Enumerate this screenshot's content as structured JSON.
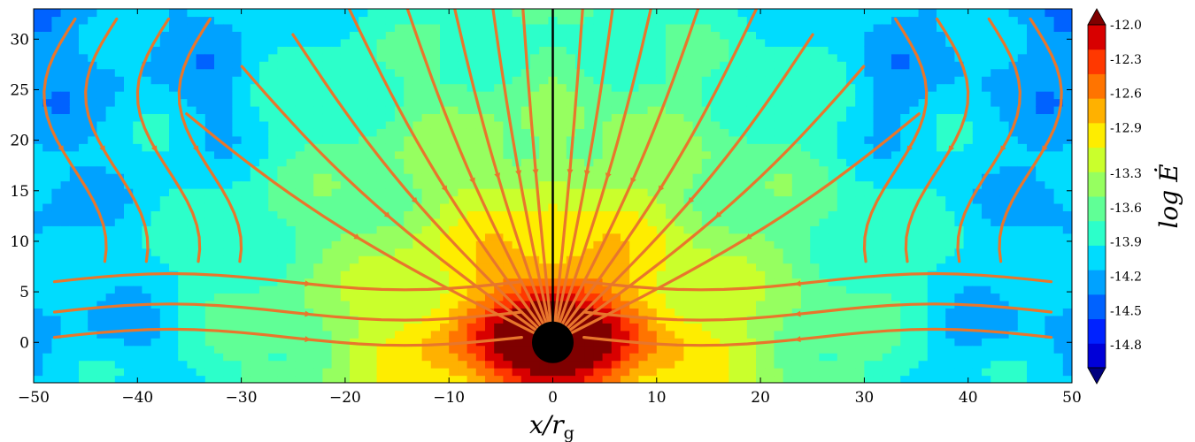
{
  "chart_data": {
    "type": "heatmap",
    "title": "",
    "xlabel": "x/r",
    "xlabel_subscript": "g",
    "ylabel": "",
    "xlim": [
      -50,
      50
    ],
    "ylim": [
      -4,
      33
    ],
    "x_ticks": [
      -50,
      -40,
      -30,
      -20,
      -10,
      0,
      10,
      20,
      30,
      40,
      50
    ],
    "x_tick_labels": [
      "−50",
      "−40",
      "−30",
      "−20",
      "−10",
      "0",
      "10",
      "20",
      "30",
      "40",
      "50"
    ],
    "y_ticks": [
      0,
      5,
      10,
      15,
      20,
      25,
      30
    ],
    "y_tick_labels": [
      "0",
      "5",
      "10",
      "15",
      "20",
      "25",
      "30"
    ],
    "colorbar": {
      "label": "log Ė",
      "min": -15.0,
      "max": -12.0,
      "step": 0.15,
      "ticks": [
        -12.0,
        -12.3,
        -12.6,
        -12.9,
        -13.3,
        -13.6,
        -13.9,
        -14.2,
        -14.5,
        -14.8
      ],
      "tick_labels": [
        "-12.0",
        "-12.3",
        "-12.6",
        "-12.9",
        "-13.3",
        "-13.6",
        "-13.9",
        "-14.2",
        "-14.5",
        "-14.8"
      ],
      "extend": "both"
    },
    "black_hole": {
      "x": 0,
      "y": 0,
      "radius": 2
    },
    "axis_line_x": 0,
    "colors": {
      "streamline": "#e8762c",
      "black_hole": "#000000",
      "colormap": [
        "#00007f",
        "#0000d8",
        "#0022ff",
        "#0062ff",
        "#00a2ff",
        "#00dcfe",
        "#2cffca",
        "#60ff96",
        "#96ff60",
        "#caff2c",
        "#feed00",
        "#ffb100",
        "#ff7400",
        "#ff3800",
        "#d80000",
        "#7f0000"
      ]
    },
    "grid": false,
    "legend": "none"
  }
}
